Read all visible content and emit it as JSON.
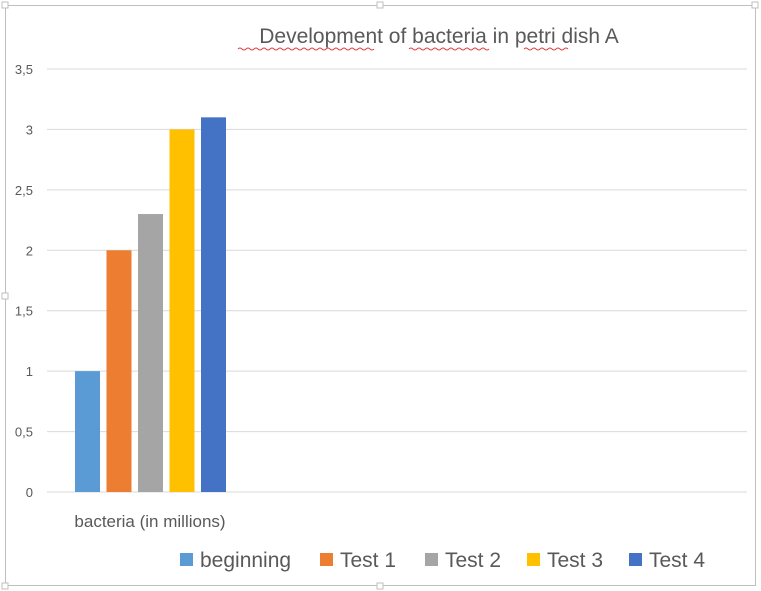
{
  "chart_data": {
    "type": "bar",
    "title": "Development of bacteria in petri dish A",
    "categories": [
      "bacteria (in millions)"
    ],
    "series": [
      {
        "name": "beginning",
        "values": [
          1.0
        ],
        "color": "#5B9BD5"
      },
      {
        "name": "Test 1",
        "values": [
          2.0
        ],
        "color": "#ED7D31"
      },
      {
        "name": "Test 2",
        "values": [
          2.3
        ],
        "color": "#A5A5A5"
      },
      {
        "name": "Test 3",
        "values": [
          3.0
        ],
        "color": "#FFC000"
      },
      {
        "name": "Test 4",
        "values": [
          3.1
        ],
        "color": "#4472C4"
      }
    ],
    "y_ticks": [
      "0",
      "0,5",
      "1",
      "1,5",
      "2",
      "2,5",
      "3",
      "3,5"
    ],
    "ylim": [
      0,
      3.5
    ],
    "grid": true,
    "legend_position": "bottom"
  }
}
